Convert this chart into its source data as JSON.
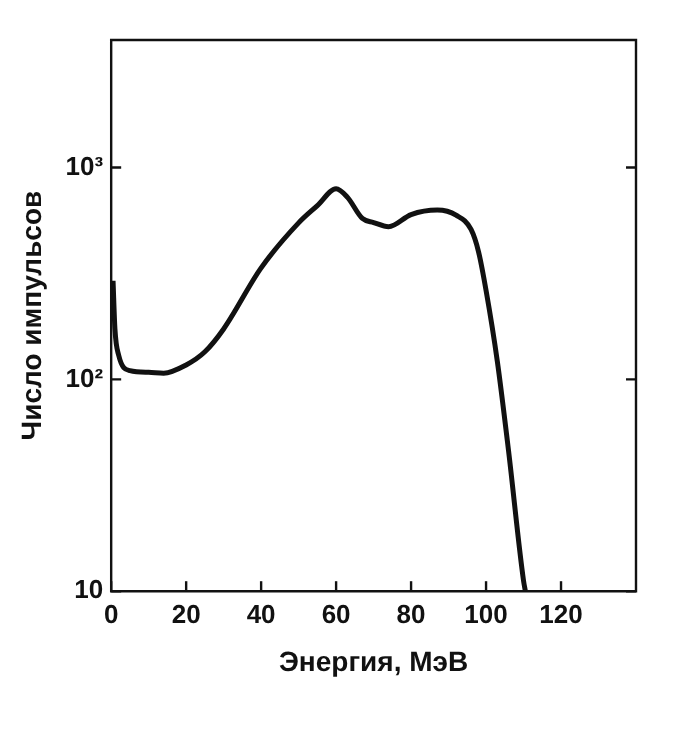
{
  "chart_data": {
    "type": "line",
    "xlabel": "Энергия, МэВ",
    "ylabel": "Число импульсов",
    "x": [
      0.5,
      1,
      2,
      5,
      10,
      14,
      20,
      25,
      30,
      40,
      50,
      55,
      60,
      63,
      67,
      70,
      74,
      80,
      87,
      92,
      96,
      98,
      100,
      103,
      106,
      110,
      110.5
    ],
    "series": [
      {
        "color": "#111111",
        "values": [
          292,
          173,
          130,
          110,
          108,
          107,
          117,
          135,
          173,
          336,
          548,
          661,
          794,
          725,
          575,
          550,
          526,
          600,
          630,
          596,
          510,
          400,
          263,
          122,
          46,
          11.2,
          10
        ]
      }
    ],
    "xlim": [
      0,
      140
    ],
    "xticks": [
      0,
      20,
      40,
      60,
      80,
      100,
      120
    ],
    "ylim": [
      10,
      4000
    ],
    "yticks": [
      10,
      {
        "value": 100,
        "label": "10²"
      },
      {
        "value": 1000,
        "label": "10³"
      }
    ],
    "log": "y",
    "grid": false,
    "legend": false,
    "marker": "none",
    "line_style": "solid"
  }
}
